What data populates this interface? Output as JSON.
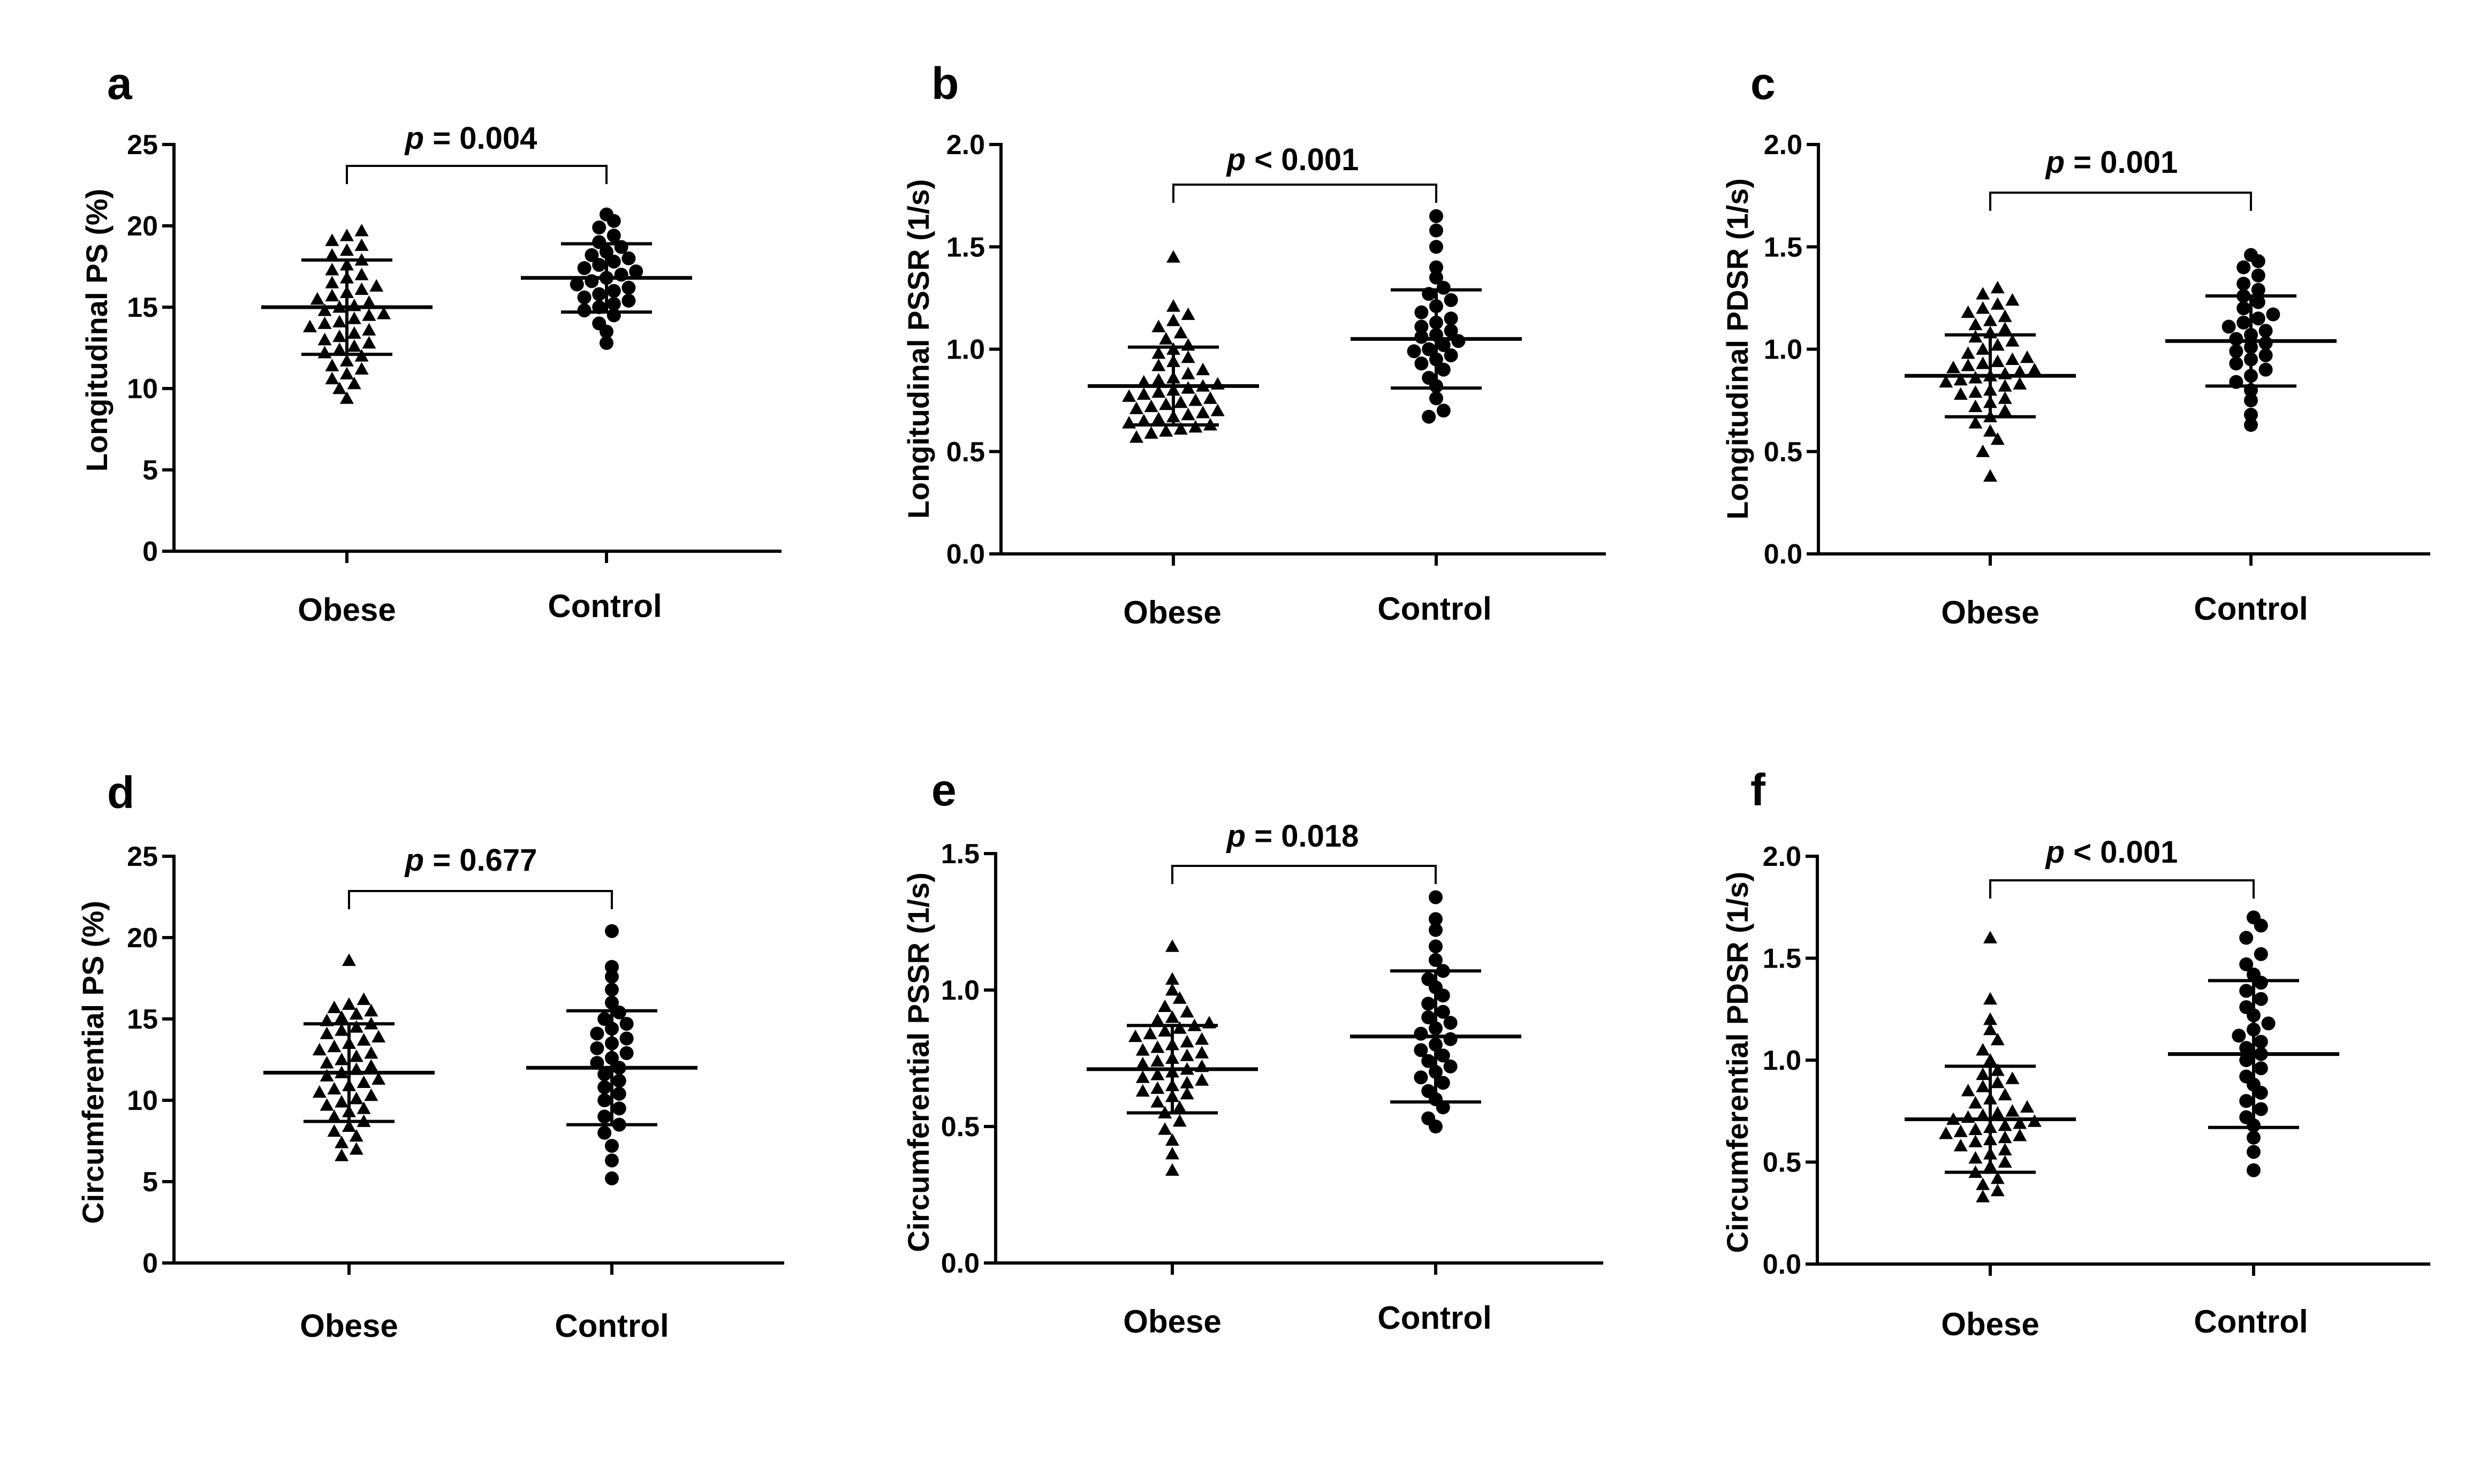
{
  "chart_data": [
    {
      "id": "a",
      "type": "scatter",
      "panel_label": "a",
      "ylabel": "Longitudinal PS (%)",
      "ylim": [
        0,
        25
      ],
      "yticks": [
        0,
        5,
        10,
        15,
        20,
        25
      ],
      "ytick_labels": [
        "0",
        "5",
        "10",
        "15",
        "20",
        "25"
      ],
      "categories": [
        "Obese",
        "Control"
      ],
      "p_prefix": "p",
      "p_rest": " = 0.004",
      "series": [
        {
          "name": "Obese",
          "marker": "triangle",
          "mean": 15.0,
          "sd": 2.9,
          "values": [
            9.4,
            10.0,
            10.3,
            10.6,
            10.9,
            11.2,
            11.4,
            11.7,
            12.0,
            12.2,
            12.4,
            12.6,
            12.8,
            13.0,
            13.2,
            13.4,
            13.6,
            13.8,
            14.0,
            14.1,
            14.3,
            14.5,
            14.6,
            14.8,
            15.0,
            15.1,
            15.3,
            15.5,
            15.7,
            15.9,
            16.1,
            16.3,
            16.5,
            16.8,
            17.0,
            17.3,
            17.6,
            17.9,
            18.2,
            18.5,
            18.8,
            19.1,
            19.4,
            19.7
          ]
        },
        {
          "name": "Control",
          "marker": "circle",
          "mean": 16.8,
          "sd": 2.1,
          "values": [
            12.8,
            13.5,
            14.0,
            14.5,
            14.8,
            15.0,
            15.2,
            15.4,
            15.6,
            15.8,
            16.0,
            16.2,
            16.4,
            16.6,
            16.8,
            17.0,
            17.2,
            17.4,
            17.6,
            17.8,
            18.0,
            18.2,
            18.4,
            18.7,
            19.0,
            19.4,
            19.9,
            20.3,
            20.7
          ]
        }
      ]
    },
    {
      "id": "b",
      "type": "scatter",
      "panel_label": "b",
      "ylabel": "Longitudinal PSSR (1/s)",
      "ylim": [
        0,
        2.0
      ],
      "yticks": [
        0,
        0.5,
        1.0,
        1.5,
        2.0
      ],
      "ytick_labels": [
        "0.0",
        "0.5",
        "1.0",
        "1.5",
        "2.0"
      ],
      "categories": [
        "Obese",
        "Control"
      ],
      "p_prefix": "p",
      "p_rest": " < 0.001",
      "series": [
        {
          "name": "Obese",
          "marker": "triangle",
          "mean": 0.82,
          "sd": 0.19,
          "values": [
            0.57,
            0.59,
            0.6,
            0.61,
            0.62,
            0.63,
            0.64,
            0.65,
            0.66,
            0.67,
            0.68,
            0.69,
            0.7,
            0.71,
            0.72,
            0.73,
            0.74,
            0.75,
            0.76,
            0.77,
            0.78,
            0.79,
            0.8,
            0.81,
            0.82,
            0.83,
            0.84,
            0.85,
            0.86,
            0.88,
            0.9,
            0.92,
            0.94,
            0.96,
            0.98,
            1.0,
            1.02,
            1.05,
            1.08,
            1.11,
            1.14,
            1.17,
            1.21,
            1.45
          ]
        },
        {
          "name": "Control",
          "marker": "circle",
          "mean": 1.05,
          "sd": 0.24,
          "values": [
            0.67,
            0.7,
            0.76,
            0.82,
            0.86,
            0.9,
            0.93,
            0.95,
            0.97,
            0.99,
            1.0,
            1.02,
            1.04,
            1.06,
            1.07,
            1.09,
            1.11,
            1.13,
            1.15,
            1.18,
            1.21,
            1.24,
            1.27,
            1.3,
            1.35,
            1.4,
            1.5,
            1.58,
            1.65
          ]
        }
      ]
    },
    {
      "id": "c",
      "type": "scatter",
      "panel_label": "c",
      "ylabel": "Longitudinal PDSR (1/s)",
      "ylim": [
        0,
        2.0
      ],
      "yticks": [
        0,
        0.5,
        1.0,
        1.5,
        2.0
      ],
      "ytick_labels": [
        "0.0",
        "0.5",
        "1.0",
        "1.5",
        "2.0"
      ],
      "categories": [
        "Obese",
        "Control"
      ],
      "p_prefix": "p",
      "p_rest": " = 0.001",
      "series": [
        {
          "name": "Obese",
          "marker": "triangle",
          "mean": 0.87,
          "sd": 0.2,
          "values": [
            0.38,
            0.5,
            0.56,
            0.6,
            0.64,
            0.67,
            0.7,
            0.72,
            0.74,
            0.76,
            0.78,
            0.79,
            0.8,
            0.82,
            0.83,
            0.84,
            0.85,
            0.86,
            0.87,
            0.88,
            0.89,
            0.9,
            0.91,
            0.92,
            0.93,
            0.94,
            0.95,
            0.96,
            0.98,
            1.0,
            1.02,
            1.04,
            1.06,
            1.08,
            1.1,
            1.12,
            1.14,
            1.16,
            1.18,
            1.2,
            1.22,
            1.24,
            1.27,
            1.3
          ]
        },
        {
          "name": "Control",
          "marker": "circle",
          "mean": 1.04,
          "sd": 0.22,
          "values": [
            0.63,
            0.68,
            0.75,
            0.8,
            0.84,
            0.87,
            0.9,
            0.93,
            0.95,
            0.97,
            0.99,
            1.01,
            1.03,
            1.05,
            1.07,
            1.09,
            1.11,
            1.13,
            1.15,
            1.17,
            1.2,
            1.23,
            1.26,
            1.29,
            1.32,
            1.36,
            1.4,
            1.43,
            1.46
          ]
        }
      ]
    },
    {
      "id": "d",
      "type": "scatter",
      "panel_label": "d",
      "ylabel": "Circumferential PS (%)",
      "ylim": [
        0,
        25
      ],
      "yticks": [
        0,
        5,
        10,
        15,
        20,
        25
      ],
      "ytick_labels": [
        "0",
        "5",
        "10",
        "15",
        "20",
        "25"
      ],
      "categories": [
        "Obese",
        "Control"
      ],
      "p_prefix": "p",
      "p_rest": " = 0.677",
      "series": [
        {
          "name": "Obese",
          "marker": "triangle",
          "mean": 11.7,
          "sd": 3.0,
          "values": [
            6.6,
            7.0,
            7.4,
            7.8,
            8.1,
            8.4,
            8.7,
            9.0,
            9.3,
            9.5,
            9.7,
            9.9,
            10.1,
            10.3,
            10.5,
            10.7,
            10.9,
            11.1,
            11.3,
            11.5,
            11.7,
            11.9,
            12.1,
            12.3,
            12.5,
            12.7,
            12.9,
            13.1,
            13.3,
            13.5,
            13.7,
            13.9,
            14.1,
            14.3,
            14.5,
            14.7,
            14.9,
            15.1,
            15.3,
            15.5,
            15.7,
            15.9,
            16.2,
            18.6
          ]
        },
        {
          "name": "Control",
          "marker": "circle",
          "mean": 12.0,
          "sd": 3.5,
          "values": [
            5.2,
            6.3,
            7.2,
            8.0,
            8.5,
            9.0,
            9.5,
            10.0,
            10.4,
            10.8,
            11.2,
            11.6,
            12.0,
            12.3,
            12.6,
            12.9,
            13.2,
            13.5,
            13.8,
            14.1,
            14.4,
            14.7,
            15.0,
            15.4,
            16.0,
            16.8,
            17.6,
            18.2,
            20.4
          ]
        }
      ]
    },
    {
      "id": "e",
      "type": "scatter",
      "panel_label": "e",
      "ylabel": "Circumferential PSSR (1/s)",
      "ylim": [
        0,
        1.5
      ],
      "yticks": [
        0,
        0.5,
        1.0,
        1.5
      ],
      "ytick_labels": [
        "0.0",
        "0.5",
        "1.0",
        "1.5"
      ],
      "categories": [
        "Obese",
        "Control"
      ],
      "p_prefix": "p",
      "p_rest": " = 0.018",
      "series": [
        {
          "name": "Obese",
          "marker": "triangle",
          "mean": 0.71,
          "sd": 0.16,
          "values": [
            0.34,
            0.4,
            0.45,
            0.49,
            0.52,
            0.55,
            0.57,
            0.59,
            0.61,
            0.62,
            0.63,
            0.64,
            0.65,
            0.66,
            0.67,
            0.68,
            0.69,
            0.7,
            0.71,
            0.72,
            0.73,
            0.74,
            0.75,
            0.76,
            0.77,
            0.78,
            0.79,
            0.8,
            0.81,
            0.82,
            0.83,
            0.84,
            0.85,
            0.86,
            0.87,
            0.88,
            0.89,
            0.9,
            0.92,
            0.94,
            0.97,
            1.0,
            1.04,
            1.16
          ]
        },
        {
          "name": "Control",
          "marker": "circle",
          "mean": 0.83,
          "sd": 0.24,
          "values": [
            0.5,
            0.53,
            0.57,
            0.6,
            0.63,
            0.66,
            0.68,
            0.7,
            0.72,
            0.74,
            0.76,
            0.78,
            0.8,
            0.82,
            0.84,
            0.86,
            0.88,
            0.9,
            0.92,
            0.95,
            0.98,
            1.01,
            1.04,
            1.07,
            1.11,
            1.16,
            1.22,
            1.26,
            1.34
          ]
        }
      ]
    },
    {
      "id": "f",
      "type": "scatter",
      "panel_label": "f",
      "ylabel": "Circumferential PDSR (1/s)",
      "ylim": [
        0,
        2.0
      ],
      "yticks": [
        0,
        0.5,
        1.0,
        1.5,
        2.0
      ],
      "ytick_labels": [
        "0.0",
        "0.5",
        "1.0",
        "1.5",
        "2.0"
      ],
      "categories": [
        "Obese",
        "Control"
      ],
      "p_prefix": "p",
      "p_rest": " < 0.001",
      "series": [
        {
          "name": "Obese",
          "marker": "triangle",
          "mean": 0.71,
          "sd": 0.26,
          "values": [
            0.33,
            0.36,
            0.39,
            0.42,
            0.45,
            0.48,
            0.5,
            0.52,
            0.54,
            0.56,
            0.58,
            0.6,
            0.61,
            0.62,
            0.63,
            0.64,
            0.65,
            0.66,
            0.67,
            0.68,
            0.69,
            0.7,
            0.71,
            0.72,
            0.73,
            0.74,
            0.75,
            0.77,
            0.79,
            0.81,
            0.83,
            0.85,
            0.87,
            0.89,
            0.91,
            0.93,
            0.95,
            1.0,
            1.05,
            1.1,
            1.15,
            1.2,
            1.3,
            1.6
          ]
        },
        {
          "name": "Control",
          "marker": "circle",
          "mean": 1.03,
          "sd": 0.36,
          "values": [
            0.46,
            0.55,
            0.62,
            0.68,
            0.72,
            0.76,
            0.8,
            0.84,
            0.88,
            0.92,
            0.96,
            1.0,
            1.03,
            1.06,
            1.09,
            1.12,
            1.15,
            1.18,
            1.22,
            1.26,
            1.3,
            1.34,
            1.38,
            1.42,
            1.47,
            1.52,
            1.6,
            1.66,
            1.7
          ]
        }
      ]
    }
  ]
}
